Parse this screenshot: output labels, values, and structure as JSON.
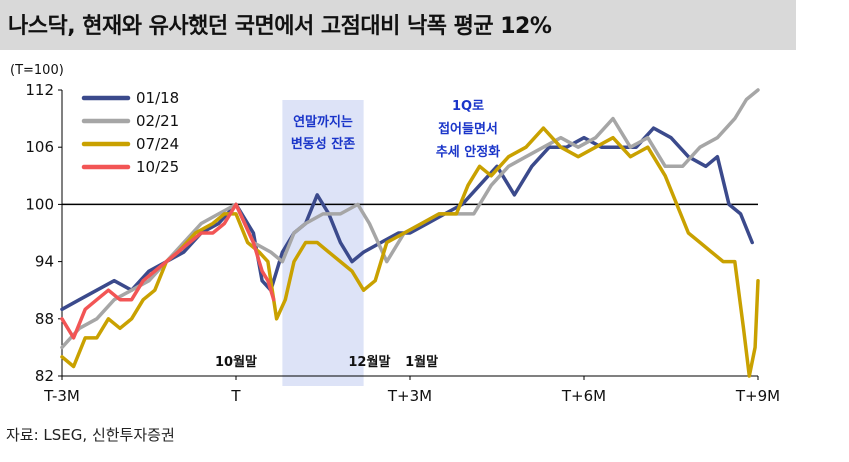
{
  "title": "나스닥, 현재와 유사했던 국면에서 고점대비 낙폭 평균 12%",
  "source": "자료: LSEG, 신한투자증권",
  "chart_data": {
    "type": "line",
    "unit_label": "(T=100)",
    "ylim": [
      82,
      112
    ],
    "yticks": [
      82,
      88,
      94,
      100,
      106,
      112
    ],
    "x_range": [
      -3,
      9
    ],
    "xtick_labels": [
      {
        "x": -3,
        "label": "T-3M"
      },
      {
        "x": 0,
        "label": "T"
      },
      {
        "x": 3,
        "label": "T+3M"
      },
      {
        "x": 6,
        "label": "T+6M"
      },
      {
        "x": 9,
        "label": "T+9M"
      }
    ],
    "reference_line": 100,
    "shaded_region": {
      "x0": 0.8,
      "x1": 2.2,
      "label_lines": [
        "연말까지는",
        "변동성 잔존"
      ]
    },
    "annotations": [
      {
        "x": 0,
        "text": "10월말"
      },
      {
        "x": 2.3,
        "text": "12월말"
      },
      {
        "x": 3.2,
        "text": "1월말"
      }
    ],
    "note_lines": [
      "1Q로",
      "접어들면서",
      "추세 안정화"
    ],
    "series": [
      {
        "name": "01/18",
        "color": "#3b4a8c",
        "points": [
          [
            -3,
            89
          ],
          [
            -2.7,
            90
          ],
          [
            -2.4,
            91
          ],
          [
            -2.1,
            92
          ],
          [
            -1.8,
            91
          ],
          [
            -1.5,
            93
          ],
          [
            -1.2,
            94
          ],
          [
            -0.9,
            95
          ],
          [
            -0.6,
            97
          ],
          [
            -0.3,
            98
          ],
          [
            0,
            100
          ],
          [
            0.3,
            97
          ],
          [
            0.45,
            92
          ],
          [
            0.6,
            91
          ],
          [
            0.8,
            95
          ],
          [
            1.0,
            97
          ],
          [
            1.2,
            98
          ],
          [
            1.4,
            101
          ],
          [
            1.6,
            99
          ],
          [
            1.8,
            96
          ],
          [
            2.0,
            94
          ],
          [
            2.2,
            95
          ],
          [
            2.5,
            96
          ],
          [
            2.8,
            97
          ],
          [
            3.0,
            97
          ],
          [
            3.3,
            98
          ],
          [
            3.6,
            99
          ],
          [
            3.9,
            100
          ],
          [
            4.2,
            102
          ],
          [
            4.5,
            104
          ],
          [
            4.8,
            101
          ],
          [
            5.1,
            104
          ],
          [
            5.4,
            106
          ],
          [
            5.7,
            106
          ],
          [
            6.0,
            107
          ],
          [
            6.3,
            106
          ],
          [
            6.6,
            106
          ],
          [
            6.9,
            106
          ],
          [
            7.2,
            108
          ],
          [
            7.5,
            107
          ],
          [
            7.8,
            105
          ],
          [
            8.1,
            104
          ],
          [
            8.3,
            105
          ],
          [
            8.5,
            100
          ],
          [
            8.7,
            99
          ],
          [
            8.9,
            96
          ]
        ]
      },
      {
        "name": "02/21",
        "color": "#a6a6a6",
        "points": [
          [
            -3,
            85
          ],
          [
            -2.7,
            87
          ],
          [
            -2.4,
            88
          ],
          [
            -2.1,
            90
          ],
          [
            -1.8,
            91
          ],
          [
            -1.5,
            92
          ],
          [
            -1.2,
            94
          ],
          [
            -0.9,
            96
          ],
          [
            -0.6,
            98
          ],
          [
            -0.3,
            99
          ],
          [
            0,
            100
          ],
          [
            0.3,
            96
          ],
          [
            0.6,
            95
          ],
          [
            0.8,
            94
          ],
          [
            1.0,
            97
          ],
          [
            1.2,
            98
          ],
          [
            1.5,
            99
          ],
          [
            1.8,
            99
          ],
          [
            2.1,
            100
          ],
          [
            2.3,
            98
          ],
          [
            2.6,
            94
          ],
          [
            2.9,
            97
          ],
          [
            3.2,
            98
          ],
          [
            3.5,
            99
          ],
          [
            3.8,
            99
          ],
          [
            4.1,
            99
          ],
          [
            4.4,
            102
          ],
          [
            4.7,
            104
          ],
          [
            5.0,
            105
          ],
          [
            5.3,
            106
          ],
          [
            5.6,
            107
          ],
          [
            5.9,
            106
          ],
          [
            6.2,
            107
          ],
          [
            6.5,
            109
          ],
          [
            6.8,
            106
          ],
          [
            7.1,
            107
          ],
          [
            7.4,
            104
          ],
          [
            7.7,
            104
          ],
          [
            8.0,
            106
          ],
          [
            8.3,
            107
          ],
          [
            8.6,
            109
          ],
          [
            8.8,
            111
          ],
          [
            9.0,
            112
          ]
        ]
      },
      {
        "name": "07/24",
        "color": "#c9a100",
        "points": [
          [
            -3,
            84
          ],
          [
            -2.8,
            83
          ],
          [
            -2.6,
            86
          ],
          [
            -2.4,
            86
          ],
          [
            -2.2,
            88
          ],
          [
            -2.0,
            87
          ],
          [
            -1.8,
            88
          ],
          [
            -1.6,
            90
          ],
          [
            -1.4,
            91
          ],
          [
            -1.2,
            94
          ],
          [
            -1.0,
            95
          ],
          [
            -0.7,
            97
          ],
          [
            -0.4,
            98
          ],
          [
            -0.2,
            99
          ],
          [
            0,
            99
          ],
          [
            0.2,
            96
          ],
          [
            0.4,
            95
          ],
          [
            0.55,
            94
          ],
          [
            0.7,
            88
          ],
          [
            0.85,
            90
          ],
          [
            1.0,
            94
          ],
          [
            1.2,
            96
          ],
          [
            1.4,
            96
          ],
          [
            1.6,
            95
          ],
          [
            1.8,
            94
          ],
          [
            2.0,
            93
          ],
          [
            2.2,
            91
          ],
          [
            2.4,
            92
          ],
          [
            2.6,
            96
          ],
          [
            2.9,
            97
          ],
          [
            3.2,
            98
          ],
          [
            3.5,
            99
          ],
          [
            3.8,
            99
          ],
          [
            4.0,
            102
          ],
          [
            4.2,
            104
          ],
          [
            4.4,
            103
          ],
          [
            4.7,
            105
          ],
          [
            5.0,
            106
          ],
          [
            5.3,
            108
          ],
          [
            5.6,
            106
          ],
          [
            5.9,
            105
          ],
          [
            6.2,
            106
          ],
          [
            6.5,
            107
          ],
          [
            6.8,
            105
          ],
          [
            7.1,
            106
          ],
          [
            7.4,
            103
          ],
          [
            7.6,
            100
          ],
          [
            7.8,
            97
          ],
          [
            8.0,
            96
          ],
          [
            8.2,
            95
          ],
          [
            8.4,
            94
          ],
          [
            8.6,
            94
          ],
          [
            8.75,
            87
          ],
          [
            8.85,
            82
          ],
          [
            8.95,
            85
          ],
          [
            9.0,
            92
          ]
        ]
      },
      {
        "name": "10/25",
        "color": "#f25555",
        "points": [
          [
            -3,
            88
          ],
          [
            -2.8,
            86
          ],
          [
            -2.6,
            89
          ],
          [
            -2.4,
            90
          ],
          [
            -2.2,
            91
          ],
          [
            -2.0,
            90
          ],
          [
            -1.8,
            90
          ],
          [
            -1.6,
            92
          ],
          [
            -1.4,
            93
          ],
          [
            -1.2,
            94
          ],
          [
            -1.0,
            95
          ],
          [
            -0.8,
            96
          ],
          [
            -0.6,
            97
          ],
          [
            -0.4,
            97
          ],
          [
            -0.2,
            98
          ],
          [
            0,
            100
          ],
          [
            0.15,
            98
          ],
          [
            0.3,
            96
          ],
          [
            0.45,
            93
          ],
          [
            0.55,
            92
          ],
          [
            0.65,
            90
          ]
        ]
      }
    ]
  }
}
